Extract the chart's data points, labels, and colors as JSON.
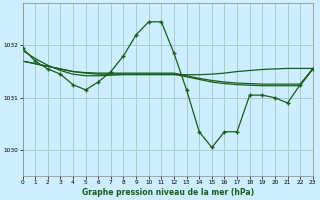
{
  "background_color": "#cceeff",
  "grid_color": "#aacccc",
  "line_color": "#1a5c1a",
  "title": "Graphe pression niveau de la mer (hPa)",
  "xlim": [
    0,
    23
  ],
  "ylim": [
    1029.5,
    1032.8
  ],
  "yticks": [
    1030,
    1031,
    1032
  ],
  "xticks": [
    0,
    1,
    2,
    3,
    4,
    5,
    6,
    7,
    8,
    9,
    10,
    11,
    12,
    13,
    14,
    15,
    16,
    17,
    18,
    19,
    20,
    21,
    22,
    23
  ],
  "main_line_x": [
    0,
    1,
    2,
    3,
    4,
    5,
    6,
    7,
    8,
    9,
    10,
    11,
    12,
    13,
    14,
    15,
    16,
    17,
    18,
    19,
    20,
    21,
    22,
    23
  ],
  "main_line_y": [
    1031.95,
    1031.7,
    1031.55,
    1031.45,
    1031.25,
    1031.15,
    1031.3,
    1031.5,
    1031.8,
    1032.2,
    1032.45,
    1032.45,
    1031.85,
    1031.15,
    1030.35,
    1030.05,
    1030.35,
    1030.35,
    1031.05,
    1031.05,
    1031.0,
    1030.9,
    1031.25,
    1031.55
  ],
  "flat_line1_y": [
    1031.7,
    1031.65,
    1031.6,
    1031.55,
    1031.5,
    1031.48,
    1031.47,
    1031.47,
    1031.47,
    1031.47,
    1031.47,
    1031.47,
    1031.47,
    1031.42,
    1031.37,
    1031.33,
    1031.3,
    1031.28,
    1031.27,
    1031.26,
    1031.26,
    1031.26,
    1031.26,
    1031.55
  ],
  "flat_line2_y": [
    1031.7,
    1031.65,
    1031.6,
    1031.55,
    1031.5,
    1031.47,
    1031.45,
    1031.45,
    1031.45,
    1031.45,
    1031.45,
    1031.45,
    1031.45,
    1031.4,
    1031.35,
    1031.3,
    1031.27,
    1031.25,
    1031.24,
    1031.23,
    1031.23,
    1031.23,
    1031.23,
    1031.55
  ],
  "smooth_line_y": [
    1031.9,
    1031.75,
    1031.62,
    1031.52,
    1031.45,
    1031.42,
    1031.42,
    1031.43,
    1031.44,
    1031.44,
    1031.44,
    1031.44,
    1031.44,
    1031.44,
    1031.44,
    1031.45,
    1031.47,
    1031.5,
    1031.52,
    1031.54,
    1031.55,
    1031.56,
    1031.56,
    1031.56
  ]
}
